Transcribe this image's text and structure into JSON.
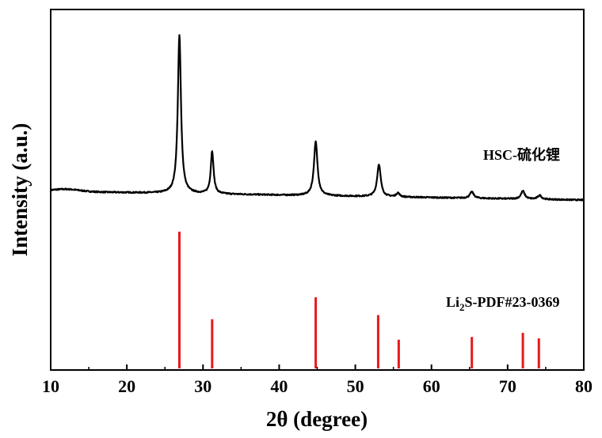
{
  "chart_data": {
    "type": "line",
    "xlabel": "2θ (degree)",
    "ylabel": "Intensity (a.u.)",
    "xlim": [
      10,
      80
    ],
    "xticks": [
      10,
      20,
      30,
      40,
      50,
      60,
      70,
      80
    ],
    "yticks_shown": false,
    "grid": false,
    "colors": {
      "measured": "#000000",
      "reference": "#e8191c"
    },
    "measured": {
      "name": "HSC-硫化锂",
      "baseline_start": 14,
      "baseline_end": 3,
      "peaks": [
        {
          "x": 26.9,
          "height": 200,
          "width": 0.25
        },
        {
          "x": 31.2,
          "height": 54,
          "width": 0.22
        },
        {
          "x": 44.8,
          "height": 68,
          "width": 0.28
        },
        {
          "x": 53.1,
          "height": 41,
          "width": 0.28
        },
        {
          "x": 55.6,
          "height": 5,
          "width": 0.25
        },
        {
          "x": 65.3,
          "height": 8,
          "width": 0.3
        },
        {
          "x": 72.0,
          "height": 10,
          "width": 0.3
        },
        {
          "x": 74.2,
          "height": 5,
          "width": 0.3
        }
      ]
    },
    "reference": {
      "name_main": "Li",
      "name_sub": "2",
      "name_rest": "S-PDF#23-0369",
      "lines": [
        {
          "x": 26.9,
          "intensity": 100
        },
        {
          "x": 31.2,
          "intensity": 36
        },
        {
          "x": 44.8,
          "intensity": 52
        },
        {
          "x": 53.0,
          "intensity": 39
        },
        {
          "x": 55.7,
          "intensity": 21
        },
        {
          "x": 65.3,
          "intensity": 23
        },
        {
          "x": 72.0,
          "intensity": 26
        },
        {
          "x": 74.1,
          "intensity": 22
        }
      ]
    }
  }
}
